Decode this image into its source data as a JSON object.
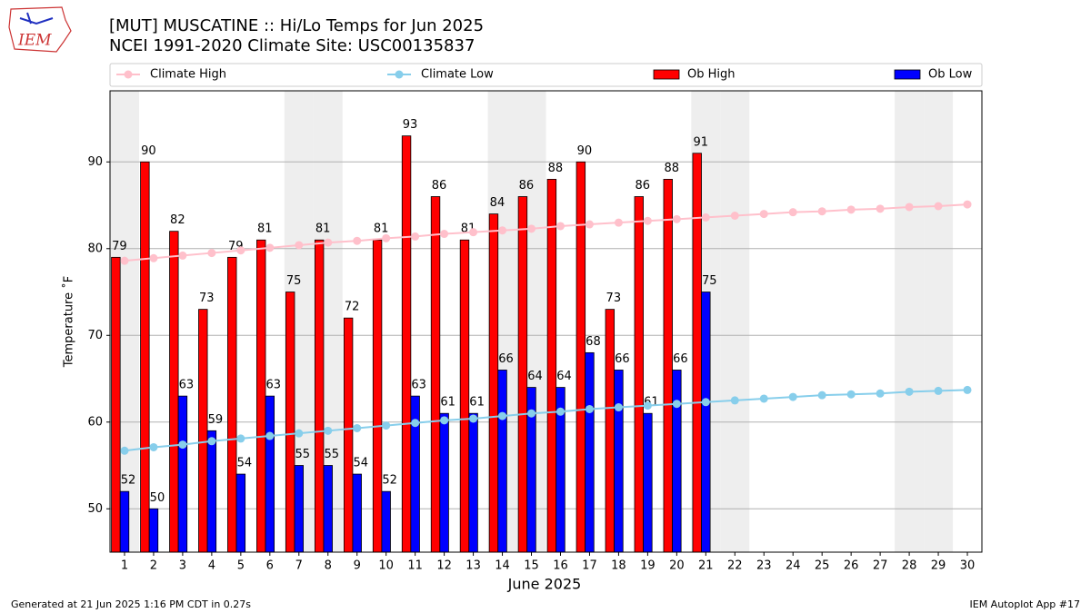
{
  "chart_data": {
    "type": "bar",
    "title": "[MUT] MUSCATINE :: Hi/Lo Temps for Jun 2025",
    "subtitle": "NCEI 1991-2020 Climate Site: USC00135837",
    "logo_text": "IEM",
    "x_label": "June 2025",
    "y_label": "Temperature ˚F",
    "x": [
      1,
      2,
      3,
      4,
      5,
      6,
      7,
      8,
      9,
      10,
      11,
      12,
      13,
      14,
      15,
      16,
      17,
      18,
      19,
      20,
      21,
      22,
      23,
      24,
      25,
      26,
      27,
      28,
      29,
      30
    ],
    "xlim": [
      0.5,
      30.5
    ],
    "xticks": [
      1,
      2,
      3,
      4,
      5,
      6,
      7,
      8,
      9,
      10,
      11,
      12,
      13,
      14,
      15,
      16,
      17,
      18,
      19,
      20,
      21,
      22,
      23,
      24,
      25,
      26,
      27,
      28,
      29,
      30
    ],
    "ylim": [
      45,
      98.2
    ],
    "yticks": [
      50,
      60,
      70,
      80,
      90
    ],
    "grid": true,
    "shaded_days": [
      1,
      7,
      8,
      14,
      15,
      21,
      22,
      28,
      29
    ],
    "shade_color": "#eeeeee",
    "series": [
      {
        "name": "Climate High",
        "type": "line",
        "color": "#ffc0cb",
        "values": [
          78.6,
          78.9,
          79.2,
          79.5,
          79.8,
          80.1,
          80.4,
          80.7,
          80.9,
          81.2,
          81.4,
          81.7,
          81.9,
          82.1,
          82.3,
          82.6,
          82.8,
          83.0,
          83.2,
          83.4,
          83.6,
          83.8,
          84.0,
          84.2,
          84.3,
          84.5,
          84.6,
          84.8,
          84.9,
          85.1
        ]
      },
      {
        "name": "Climate Low",
        "type": "line",
        "color": "#87ceeb",
        "values": [
          56.7,
          57.1,
          57.4,
          57.8,
          58.1,
          58.4,
          58.7,
          59.0,
          59.3,
          59.6,
          59.9,
          60.2,
          60.4,
          60.7,
          61.0,
          61.2,
          61.5,
          61.7,
          61.9,
          62.1,
          62.3,
          62.5,
          62.7,
          62.9,
          63.1,
          63.2,
          63.3,
          63.5,
          63.6,
          63.7
        ]
      },
      {
        "name": "Ob High",
        "type": "bar",
        "color": "#ff0000",
        "values": [
          79,
          90,
          82,
          73,
          79,
          81,
          75,
          81,
          72,
          81,
          93,
          86,
          81,
          84,
          86,
          88,
          90,
          73,
          86,
          88,
          91,
          null,
          null,
          null,
          null,
          null,
          null,
          null,
          null,
          null
        ]
      },
      {
        "name": "Ob Low",
        "type": "bar",
        "color": "#0000ff",
        "values": [
          52,
          50,
          63,
          59,
          54,
          63,
          55,
          55,
          54,
          52,
          63,
          61,
          61,
          66,
          64,
          64,
          68,
          66,
          61,
          66,
          75,
          null,
          null,
          null,
          null,
          null,
          null,
          null,
          null,
          null
        ]
      }
    ],
    "footer_left": "Generated at 21 Jun 2025 1:16 PM CDT in 0.27s",
    "footer_right": "IEM Autoplot App #17"
  }
}
